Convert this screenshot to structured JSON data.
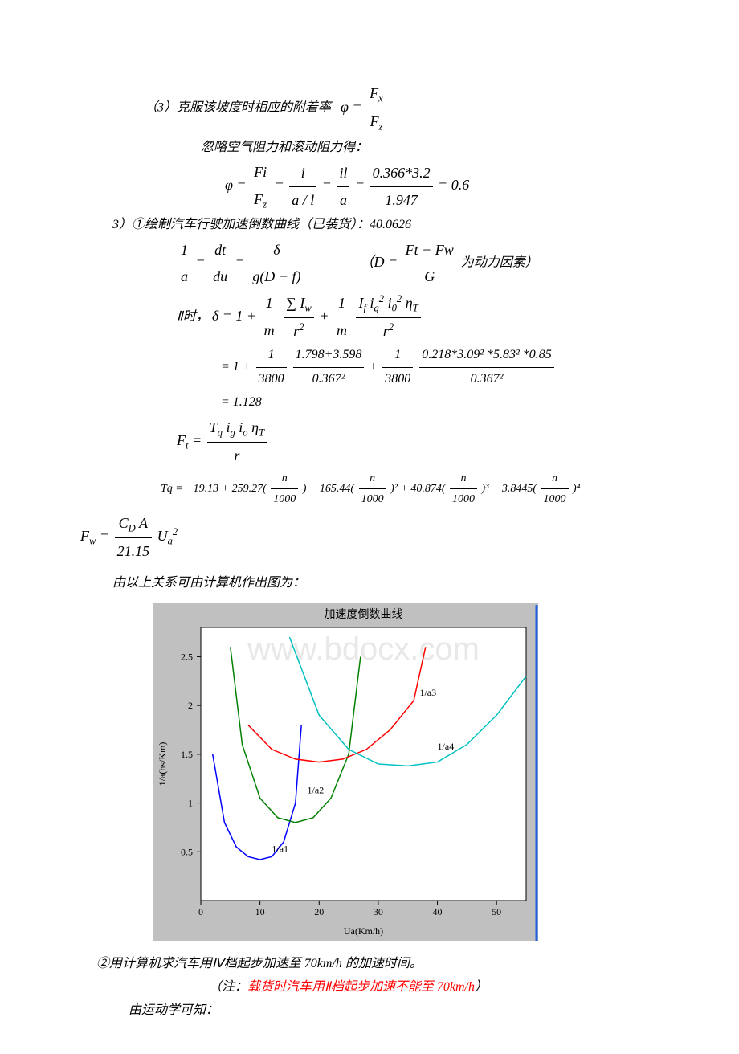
{
  "section3": {
    "label": "（3）克服该坡度时相应的附着率",
    "eq1_lhs": "φ",
    "eq1_num": "F",
    "eq1_num_sub": "x",
    "eq1_den": "F",
    "eq1_den_sub": "z",
    "line2": "忽略空气阻力和滚动阻力得：",
    "eq2_phi": "φ",
    "eq2_f1n": "Fi",
    "eq2_f1d": "F",
    "eq2_f1d_sub": "z",
    "eq2_f2n": "i",
    "eq2_f2d": "a / l",
    "eq2_f3n": "il",
    "eq2_f3d": "a",
    "eq2_f4n": "0.366*3.2",
    "eq2_f4d": "1.947",
    "eq2_result": "0.6"
  },
  "section3b": {
    "header": "3）①绘制汽车行驶加速倒数曲线（已装货）：40.0626",
    "D_note_lhs": "D",
    "D_note_num": "Ft − Fw",
    "D_note_den": "G",
    "D_note_text": "为动力因素）",
    "eq_1a_lhs_num": "1",
    "eq_1a_lhs_den": "a",
    "eq_1a_m1_num": "dt",
    "eq_1a_m1_den": "du",
    "eq_1a_m2_num": "δ",
    "eq_1a_m2_den": "g(D − f)",
    "ii_label": "Ⅱ时，",
    "delta_sym": "δ",
    "ii_term1_pre": "1 +",
    "ii_t1_num": "1",
    "ii_t1_den": "m",
    "ii_t1b_num": "∑ I",
    "ii_t1b_num_sub": "w",
    "ii_t1b_den": "r",
    "ii_t2_num": "1",
    "ii_t2_den": "m",
    "ii_t2b_num": "I",
    "ii_t2b_f": "f",
    "ii_t2b_ig": "i",
    "ii_t2b_g": "g",
    "ii_t2b_i0": "i",
    "ii_t2b_0": "0",
    "ii_t2b_eta": "η",
    "ii_t2b_T": "T",
    "ii_t2b_den": "r",
    "num_line_pre": "= 1 +",
    "num_t1_num": "1",
    "num_t1_den": "3800",
    "num_t1b_num": "1.798+3.598",
    "num_t1b_den": "0.367²",
    "num_plus": "+",
    "num_t2_num": "1",
    "num_t2_den": "3800",
    "num_t2b_num": "0.218*3.09² *5.83² *0.85",
    "num_t2b_den": "0.367²",
    "result_line": "= 1.128",
    "Ft_lhs": "F",
    "Ft_lhs_sub": "t",
    "Ft_num_T": "T",
    "Ft_num_q": "q",
    "Ft_num_ig": "i",
    "Ft_num_g": "g",
    "Ft_num_io": "i",
    "Ft_num_o": "o",
    "Ft_num_eta": "η",
    "Ft_num_T2": "T",
    "Ft_den": "r",
    "Tq_eq": "Tq = −19.13 + 259.27(",
    "Tq_frac_num": "n",
    "Tq_frac_den": "1000",
    "Tq_p1": ") − 165.44(",
    "Tq_p2": ")² + 40.874(",
    "Tq_p3": ")³ − 3.8445(",
    "Tq_p4": ")⁴",
    "Fw_lhs": "F",
    "Fw_lhs_sub": "w",
    "Fw_num_C": "C",
    "Fw_num_D": "D",
    "Fw_num_A": "A",
    "Fw_den": "21.15",
    "Fw_U": "U",
    "Fw_a": "a",
    "Fw_sq": "2"
  },
  "chart_intro": "由以上关系可由计算机作出图为：",
  "chart": {
    "title": "加速度倒数曲线",
    "watermark": "www.bdocx.com",
    "xlabel": "Ua(Km/h)",
    "ylabel": "1/a(hs/Km)",
    "background_color": "#c0c0c0",
    "plot_bg": "#ffffff",
    "xlim": [
      0,
      55
    ],
    "ylim": [
      0,
      2.8
    ],
    "xticks": [
      0,
      10,
      20,
      30,
      40,
      50
    ],
    "yticks": [
      0.5,
      1,
      1.5,
      2,
      2.5
    ],
    "series": [
      {
        "label": "1/a1",
        "color": "#0000ff",
        "label_pos": [
          12,
          0.5
        ],
        "points": [
          [
            2,
            1.5
          ],
          [
            4,
            0.8
          ],
          [
            6,
            0.55
          ],
          [
            8,
            0.45
          ],
          [
            10,
            0.42
          ],
          [
            12,
            0.45
          ],
          [
            14,
            0.6
          ],
          [
            16,
            1.0
          ],
          [
            17,
            1.8
          ]
        ]
      },
      {
        "label": "1/a2",
        "color": "#008000",
        "label_pos": [
          18,
          1.1
        ],
        "points": [
          [
            5,
            2.6
          ],
          [
            7,
            1.6
          ],
          [
            10,
            1.05
          ],
          [
            13,
            0.85
          ],
          [
            16,
            0.8
          ],
          [
            19,
            0.85
          ],
          [
            22,
            1.05
          ],
          [
            25,
            1.5
          ],
          [
            27,
            2.5
          ]
        ]
      },
      {
        "label": "1/a3",
        "color": "#ff0000",
        "label_pos": [
          37,
          2.1
        ],
        "points": [
          [
            8,
            1.8
          ],
          [
            12,
            1.55
          ],
          [
            16,
            1.45
          ],
          [
            20,
            1.42
          ],
          [
            24,
            1.45
          ],
          [
            28,
            1.55
          ],
          [
            32,
            1.75
          ],
          [
            36,
            2.05
          ],
          [
            38,
            2.6
          ]
        ]
      },
      {
        "label": "1/a4",
        "color": "#00c0c0",
        "label_pos": [
          40,
          1.55
        ],
        "points": [
          [
            15,
            2.7
          ],
          [
            20,
            1.9
          ],
          [
            25,
            1.55
          ],
          [
            30,
            1.4
          ],
          [
            35,
            1.38
          ],
          [
            40,
            1.42
          ],
          [
            45,
            1.6
          ],
          [
            50,
            1.9
          ],
          [
            55,
            2.3
          ]
        ]
      }
    ]
  },
  "footer": {
    "line1": "②用计算机求汽车用Ⅳ档起步加速至 70km/h 的加速时间。",
    "line2_pre": "（注：",
    "line2_red": "载货时汽车用Ⅱ档起步加速不能至 70km/h",
    "line2_post": "）",
    "line3": "由运动学可知："
  }
}
